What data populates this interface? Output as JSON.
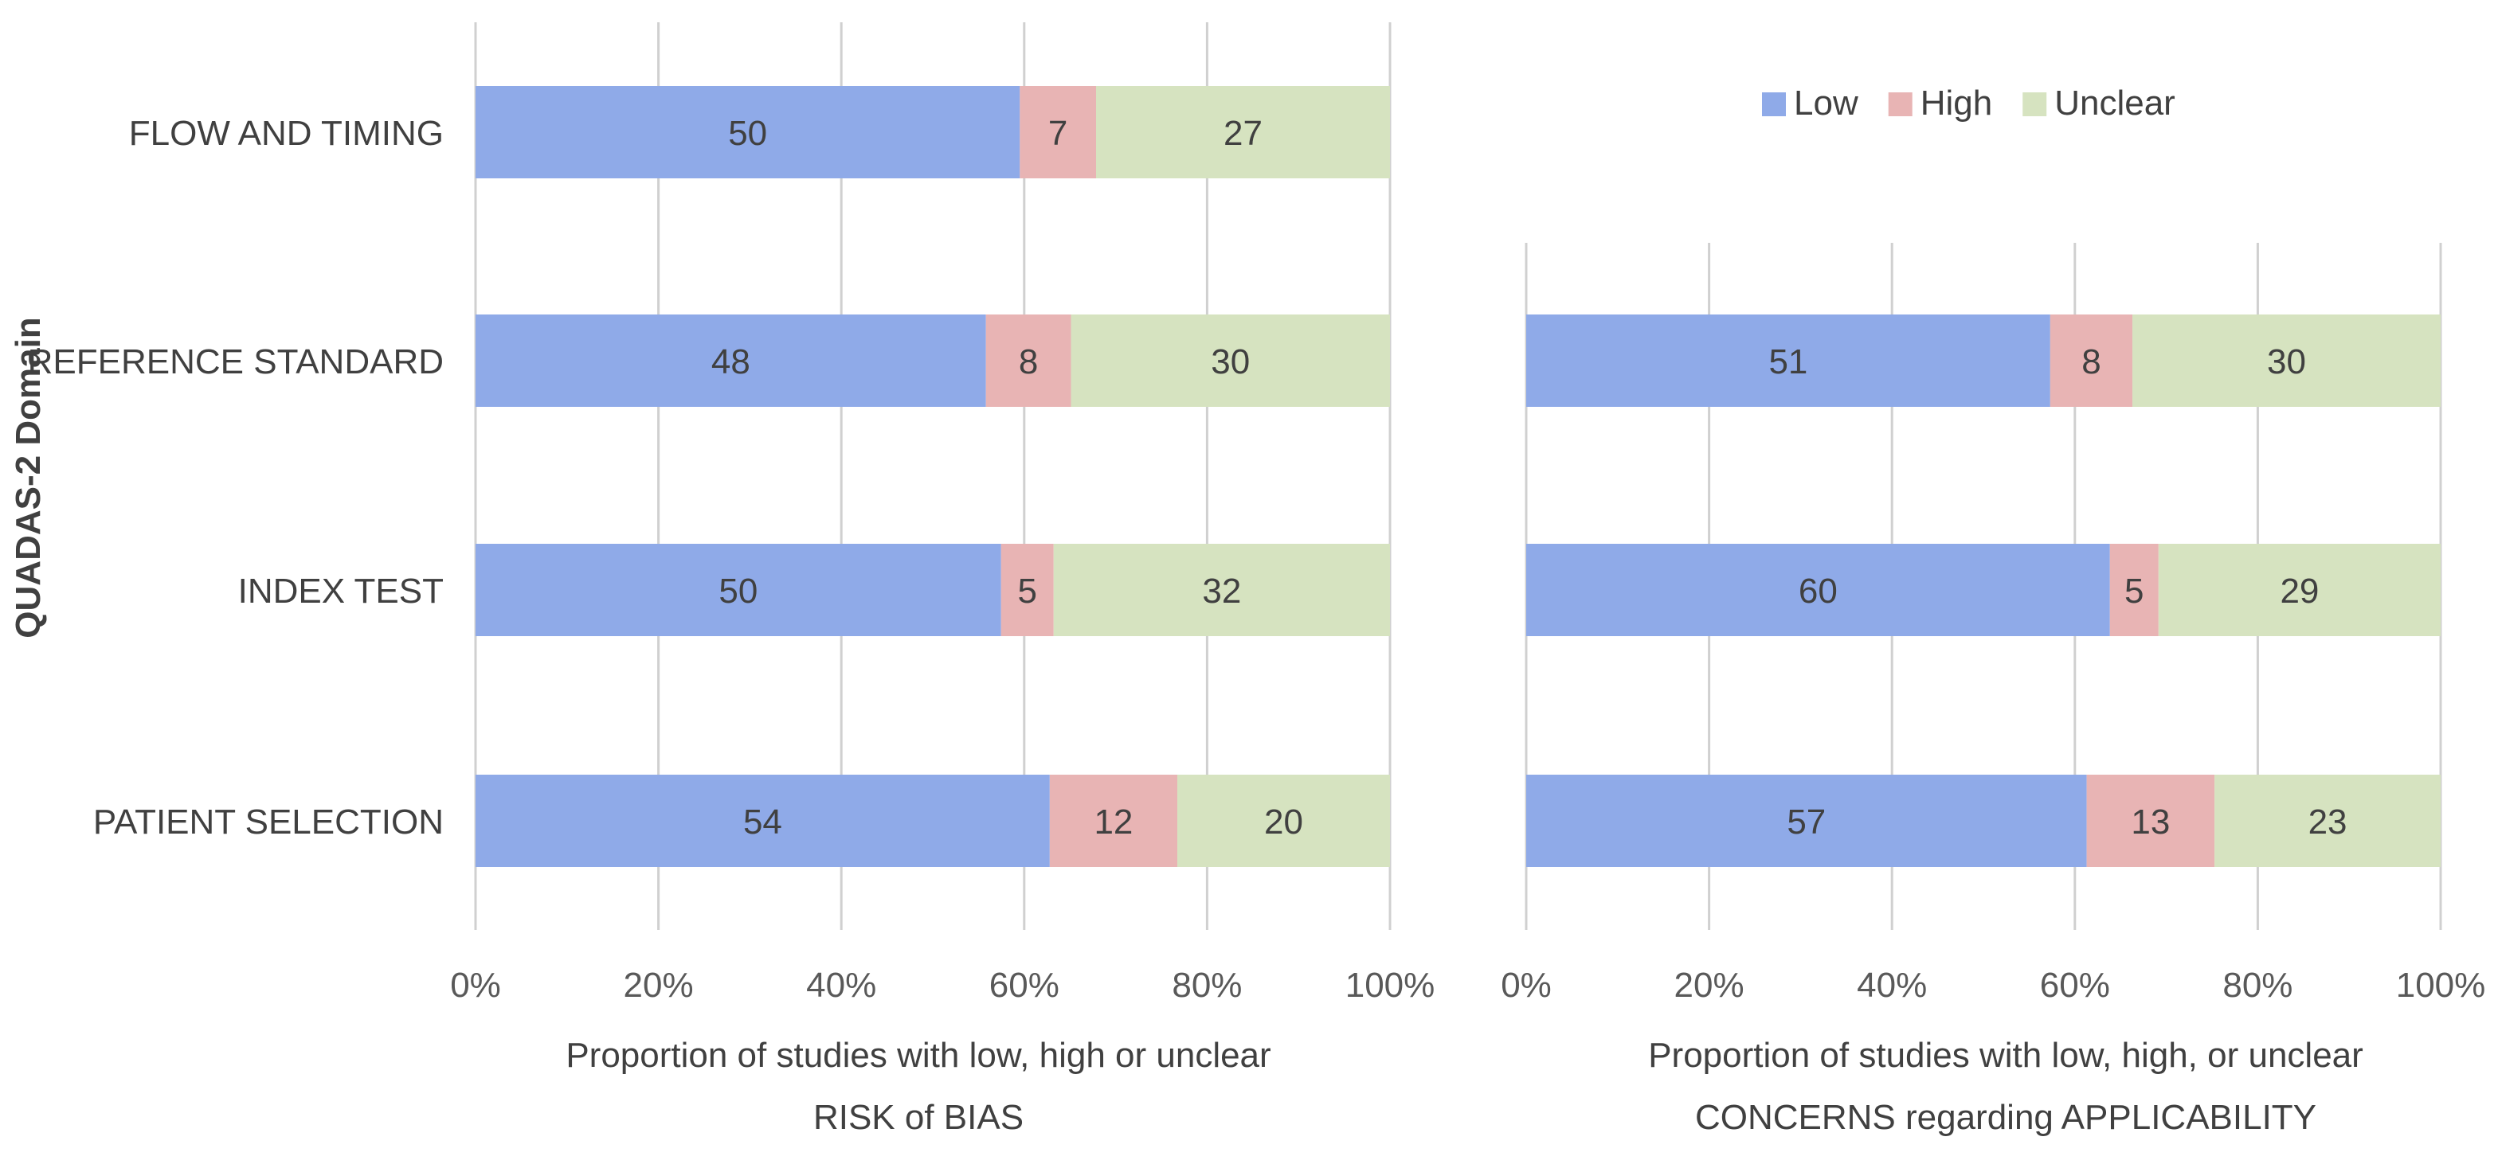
{
  "chart_data": [
    {
      "type": "bar",
      "orientation": "horizontal",
      "stacked": "percent",
      "title": "",
      "ylabel": "QUADAS-2 Domain",
      "xlabel_lines": [
        "Proportion of studies with low, high or unclear",
        "RISK of BIAS"
      ],
      "categories": [
        "PATIENT SELECTION",
        "INDEX TEST",
        "REFERENCE STANDARD",
        "FLOW AND TIMING"
      ],
      "series": [
        {
          "name": "Low",
          "color": "#8faae8",
          "values": [
            54,
            50,
            48,
            50
          ]
        },
        {
          "name": "High",
          "color": "#e8b4b4",
          "values": [
            12,
            5,
            8,
            7
          ]
        },
        {
          "name": "Unclear",
          "color": "#d6e3c0",
          "values": [
            20,
            32,
            30,
            27
          ]
        }
      ],
      "xticks": [
        "0%",
        "20%",
        "40%",
        "60%",
        "80%",
        "100%"
      ],
      "xlim": [
        0,
        100
      ],
      "grid": true
    },
    {
      "type": "bar",
      "orientation": "horizontal",
      "stacked": "percent",
      "title": "",
      "xlabel_lines": [
        "Proportion of studies with low, high, or unclear",
        "CONCERNS regarding APPLICABILITY"
      ],
      "categories": [
        "PATIENT SELECTION",
        "INDEX TEST",
        "REFERENCE STANDARD"
      ],
      "series": [
        {
          "name": "Low",
          "color": "#8faae8",
          "values": [
            57,
            60,
            51
          ]
        },
        {
          "name": "High",
          "color": "#e8b4b4",
          "values": [
            13,
            5,
            8
          ]
        },
        {
          "name": "Unclear",
          "color": "#d6e3c0",
          "values": [
            23,
            29,
            30
          ]
        }
      ],
      "xticks": [
        "0%",
        "20%",
        "40%",
        "60%",
        "80%",
        "100%"
      ],
      "xlim": [
        0,
        100
      ],
      "grid": true
    }
  ],
  "legend": [
    {
      "name": "Low",
      "color": "#8faae8"
    },
    {
      "name": "High",
      "color": "#e8b4b4"
    },
    {
      "name": "Unclear",
      "color": "#d6e3c0"
    }
  ]
}
